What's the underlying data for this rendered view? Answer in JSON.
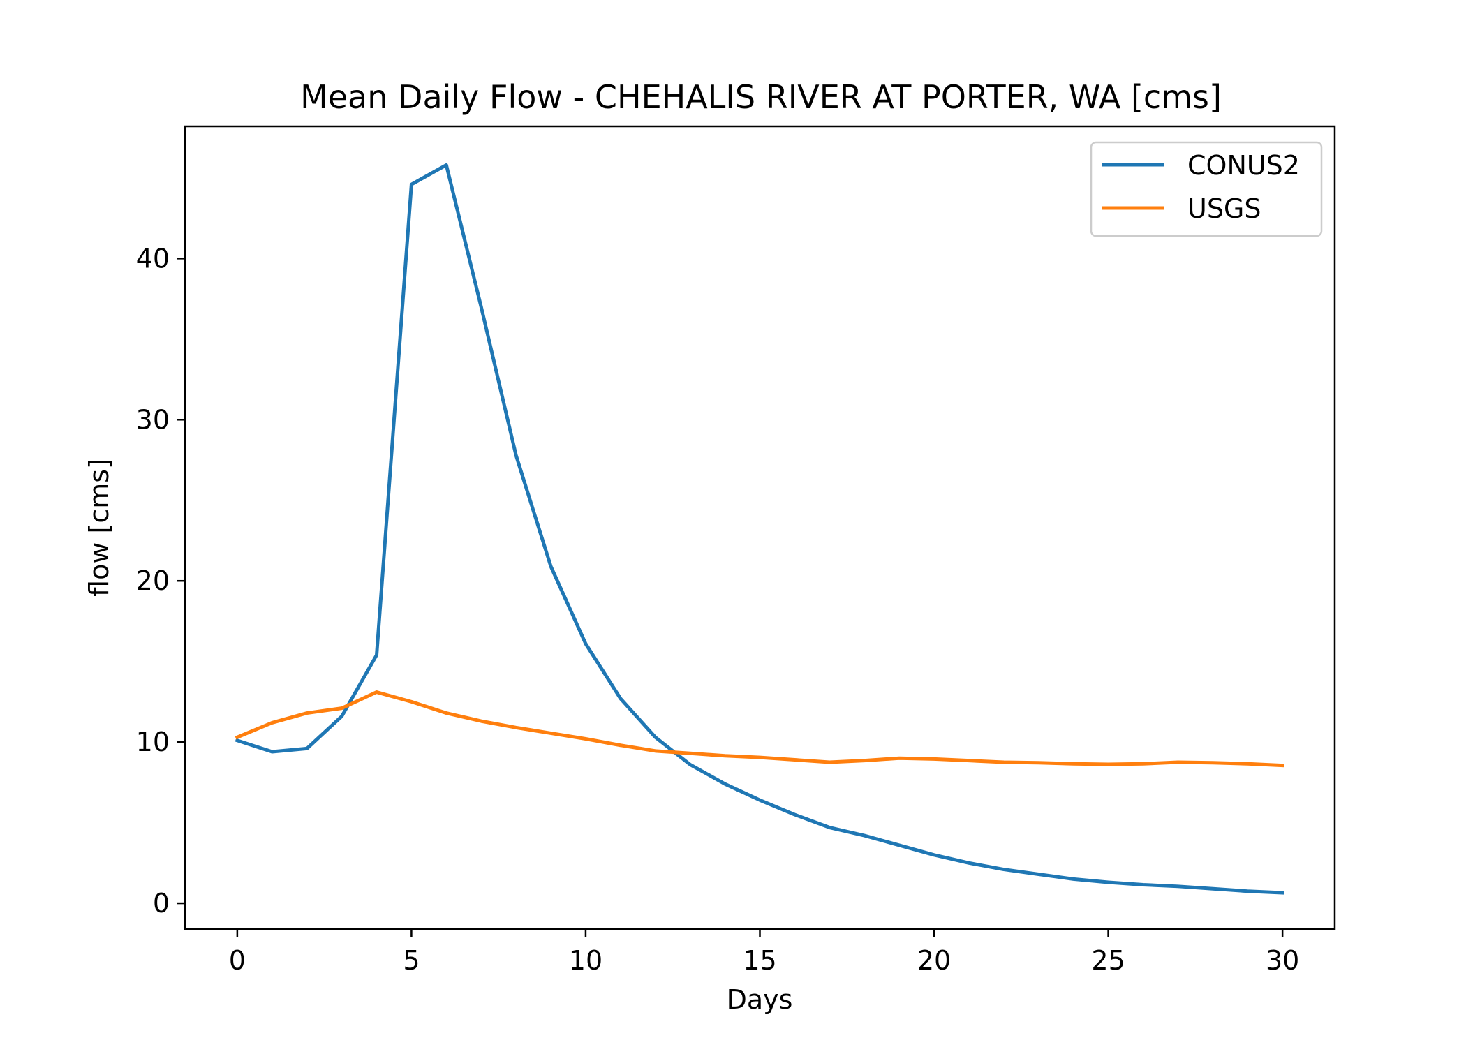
{
  "chart_data": {
    "type": "line",
    "title": "Mean Daily Flow - CHEHALIS RIVER AT PORTER, WA [cms]",
    "xlabel": "Days",
    "ylabel": "flow [cms]",
    "xlim": [
      -1.5,
      31.5
    ],
    "ylim": [
      -1.6,
      48.2
    ],
    "xticks": [
      0,
      5,
      10,
      15,
      20,
      25,
      30
    ],
    "yticks": [
      0,
      10,
      20,
      30,
      40
    ],
    "grid": false,
    "legend_position": "upper right",
    "x": [
      0,
      1,
      2,
      3,
      4,
      5,
      6,
      7,
      8,
      9,
      10,
      11,
      12,
      13,
      14,
      15,
      16,
      17,
      18,
      19,
      20,
      21,
      22,
      23,
      24,
      25,
      26,
      27,
      28,
      29,
      30
    ],
    "series": [
      {
        "name": "CONUS2",
        "color": "#1f77b4",
        "values": [
          10.1,
          9.4,
          9.6,
          11.6,
          15.4,
          44.6,
          45.8,
          37.0,
          27.8,
          20.9,
          16.1,
          12.7,
          10.3,
          8.6,
          7.4,
          6.4,
          5.5,
          4.7,
          4.2,
          3.6,
          3.0,
          2.5,
          2.1,
          1.8,
          1.5,
          1.3,
          1.15,
          1.05,
          0.9,
          0.75,
          0.65
        ]
      },
      {
        "name": "USGS",
        "color": "#ff7f0e",
        "values": [
          10.3,
          11.2,
          11.8,
          12.1,
          13.1,
          12.5,
          11.8,
          11.3,
          10.9,
          10.55,
          10.2,
          9.8,
          9.45,
          9.3,
          9.15,
          9.05,
          8.9,
          8.75,
          8.85,
          9.0,
          8.95,
          8.85,
          8.75,
          8.72,
          8.65,
          8.62,
          8.65,
          8.75,
          8.72,
          8.65,
          8.55
        ]
      }
    ]
  }
}
